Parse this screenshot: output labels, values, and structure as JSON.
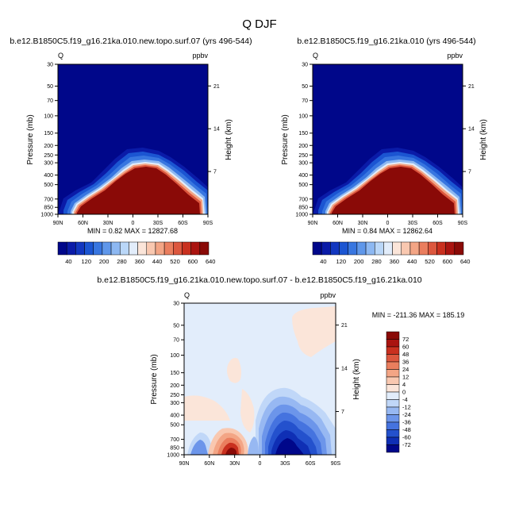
{
  "figure": {
    "title": "Q DJF"
  },
  "colors": {
    "sequential": [
      "#00078a",
      "#0a1ba8",
      "#1237c0",
      "#1b55d2",
      "#3876e0",
      "#5f97ea",
      "#8db8f2",
      "#bad7f8",
      "#e2edfb",
      "#fbe5d9",
      "#f9c8b0",
      "#f3a585",
      "#ea7e5e",
      "#dc573e",
      "#c9301f",
      "#aa1410",
      "#8a0a07"
    ],
    "diverging": [
      "#00078a",
      "#0f2fb5",
      "#2451cd",
      "#4573df",
      "#6c95ea",
      "#97b8f2",
      "#c0d7f8",
      "#e2edfb",
      "#fbe5d9",
      "#f9c8b0",
      "#f3a585",
      "#ea7e5e",
      "#dc573e",
      "#c9301f",
      "#aa1410",
      "#8a0a07"
    ]
  },
  "chart_data": [
    {
      "type": "heatmap",
      "title": "b.e12.B1850C5.f19_g16.21ka.010.new.topo.surf.07 (yrs 496-544)",
      "left_label": "Q",
      "right_label": "ppbv",
      "xlabel": "",
      "ylabel": "Pressure (mb)",
      "ylabel_right": "Height (km)",
      "x_ticks": [
        "90N",
        "60N",
        "30N",
        "0",
        "30S",
        "60S",
        "90S"
      ],
      "y_ticks": [
        "30",
        "50",
        "70",
        "100",
        "150",
        "200",
        "250",
        "300",
        "400",
        "500",
        "700",
        "850",
        "1000"
      ],
      "y_ticks_right": [
        "21",
        "14",
        "7"
      ],
      "stats": "MIN =   0.82   MAX = 12827.68",
      "colorbar_labels": [
        "40",
        "120",
        "200",
        "280",
        "360",
        "440",
        "520",
        "600",
        "640"
      ],
      "colorbar_orientation": "horizontal"
    },
    {
      "type": "heatmap",
      "title": "b.e12.B1850C5.f19_g16.21ka.010 (yrs 496-544)",
      "left_label": "Q",
      "right_label": "ppbv",
      "xlabel": "",
      "ylabel": "Pressure (mb)",
      "ylabel_right": "Height (km)",
      "x_ticks": [
        "90N",
        "60N",
        "30N",
        "0",
        "30S",
        "60S",
        "90S"
      ],
      "y_ticks": [
        "30",
        "50",
        "70",
        "100",
        "150",
        "200",
        "250",
        "300",
        "400",
        "500",
        "700",
        "850",
        "1000"
      ],
      "y_ticks_right": [
        "21",
        "14",
        "7"
      ],
      "stats": "MIN =   0.84   MAX = 12862.64",
      "colorbar_labels": [
        "40",
        "120",
        "200",
        "280",
        "360",
        "440",
        "520",
        "600",
        "640"
      ],
      "colorbar_orientation": "horizontal"
    },
    {
      "type": "heatmap",
      "title": "b.e12.B1850C5.f19_g16.21ka.010.new.topo.surf.07 - b.e12.B1850C5.f19_g16.21ka.010",
      "left_label": "Q",
      "right_label": "ppbv",
      "xlabel": "",
      "ylabel": "Pressure (mb)",
      "ylabel_right": "Height (km)",
      "x_ticks": [
        "90N",
        "60N",
        "30N",
        "0",
        "30S",
        "60S",
        "90S"
      ],
      "y_ticks": [
        "30",
        "50",
        "70",
        "100",
        "150",
        "200",
        "250",
        "300",
        "400",
        "500",
        "700",
        "850",
        "1000"
      ],
      "y_ticks_right": [
        "21",
        "14",
        "7"
      ],
      "stats": "MIN = -211.36   MAX = 185.19",
      "colorbar_labels": [
        "72",
        "60",
        "48",
        "36",
        "24",
        "12",
        "4",
        "0",
        "-4",
        "-12",
        "-24",
        "-36",
        "-48",
        "-60",
        "-72"
      ],
      "colorbar_orientation": "vertical"
    }
  ]
}
